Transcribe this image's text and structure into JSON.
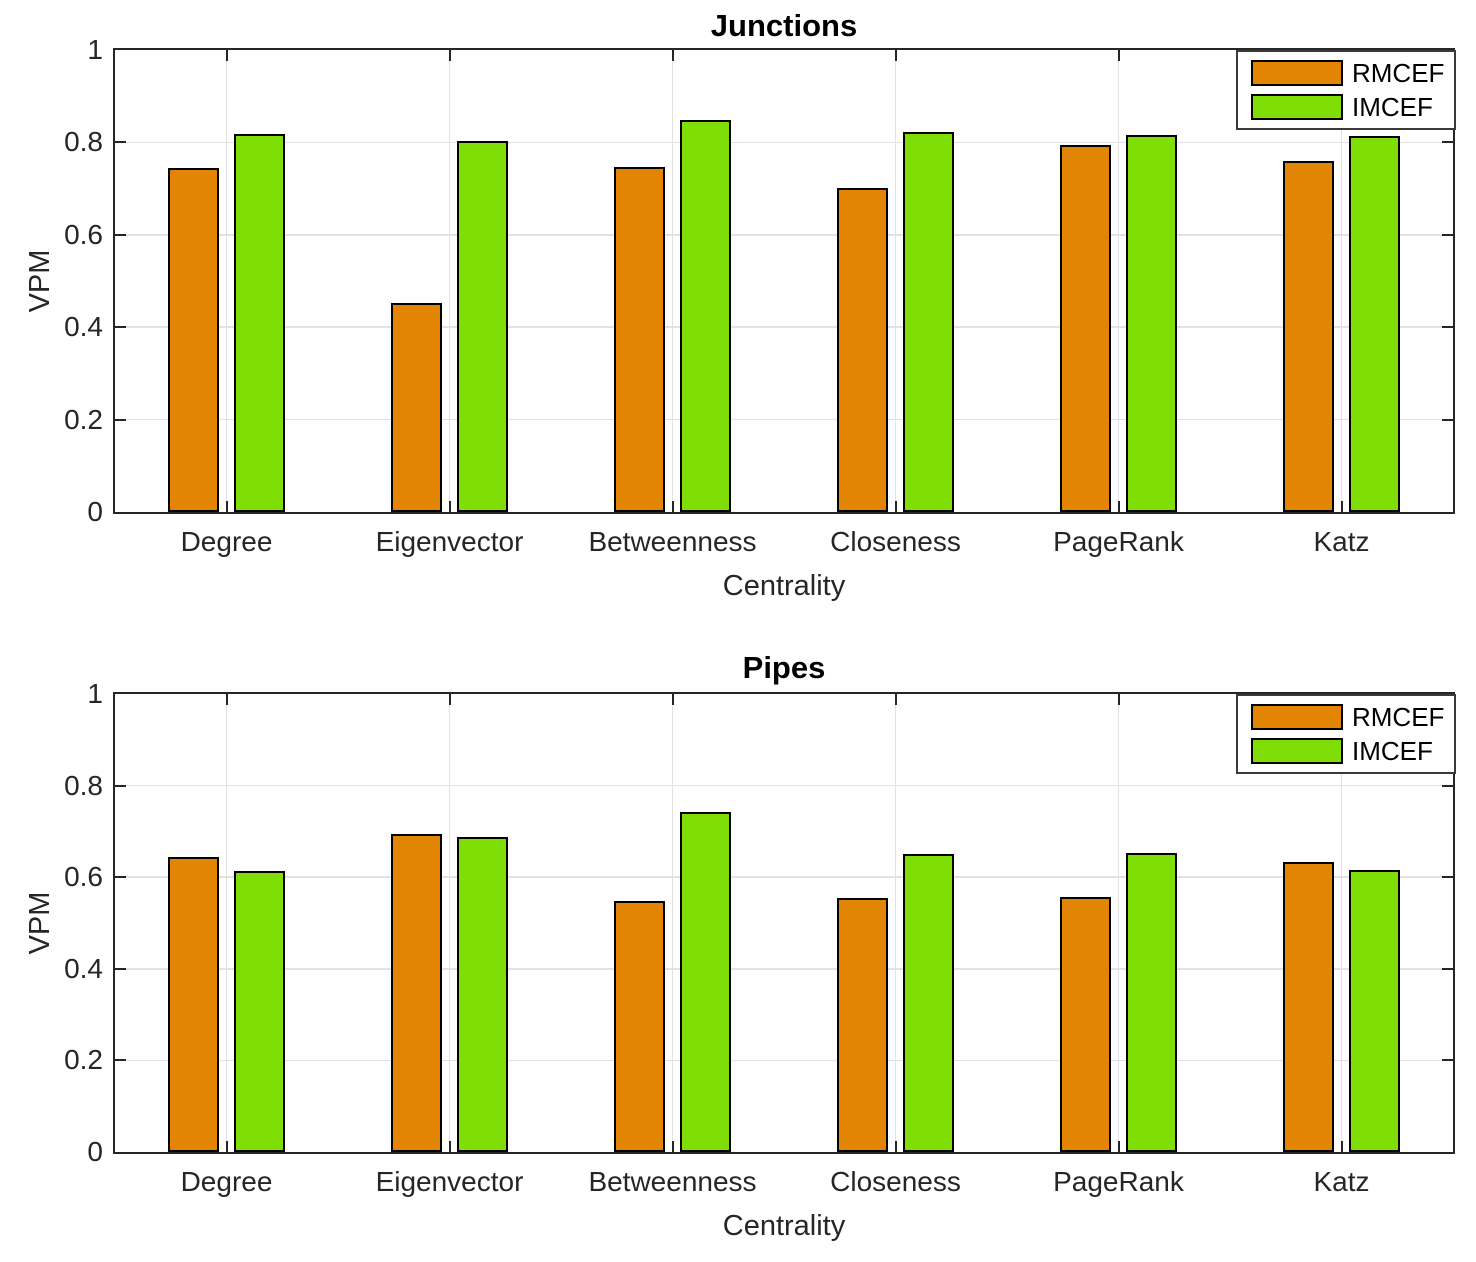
{
  "figure": {
    "background": "#ffffff"
  },
  "colors": {
    "rmcef": "#e28504",
    "imcef": "#7ede05",
    "bar_edge": "#000000",
    "axis": "#262626",
    "grid": "#e2e2e2",
    "title_text": "#000000"
  },
  "legend": {
    "labels": [
      "RMCEF",
      "IMCEF"
    ],
    "position": "top-right",
    "border": true
  },
  "chart_data": [
    {
      "type": "bar",
      "title": "Junctions",
      "xlabel": "Centrality",
      "ylabel": "VPM",
      "ylim": [
        0,
        1
      ],
      "yticks": [
        0,
        0.2,
        0.4,
        0.6,
        0.8,
        1
      ],
      "ytick_labels": [
        "0",
        "0.2",
        "0.4",
        "0.6",
        "0.8",
        "1"
      ],
      "grid": "both",
      "legend_position": "top-right",
      "categories": [
        "Degree",
        "Eigenvector",
        "Betweenness",
        "Closeness",
        "PageRank",
        "Katz"
      ],
      "series": [
        {
          "name": "RMCEF",
          "color": "#e28504",
          "values": [
            0.745,
            0.452,
            0.746,
            0.701,
            0.794,
            0.76
          ]
        },
        {
          "name": "IMCEF",
          "color": "#7ede05",
          "values": [
            0.818,
            0.802,
            0.849,
            0.822,
            0.816,
            0.813
          ]
        }
      ]
    },
    {
      "type": "bar",
      "title": "Pipes",
      "xlabel": "Centrality",
      "ylabel": "VPM",
      "ylim": [
        0,
        1
      ],
      "yticks": [
        0,
        0.2,
        0.4,
        0.6,
        0.8,
        1
      ],
      "ytick_labels": [
        "0",
        "0.2",
        "0.4",
        "0.6",
        "0.8",
        "1"
      ],
      "grid": "both",
      "legend_position": "top-right",
      "categories": [
        "Degree",
        "Eigenvector",
        "Betweenness",
        "Closeness",
        "PageRank",
        "Katz"
      ],
      "series": [
        {
          "name": "RMCEF",
          "color": "#e28504",
          "values": [
            0.645,
            0.694,
            0.549,
            0.554,
            0.557,
            0.633
          ]
        },
        {
          "name": "IMCEF",
          "color": "#7ede05",
          "values": [
            0.613,
            0.687,
            0.743,
            0.65,
            0.653,
            0.616
          ]
        }
      ]
    }
  ]
}
